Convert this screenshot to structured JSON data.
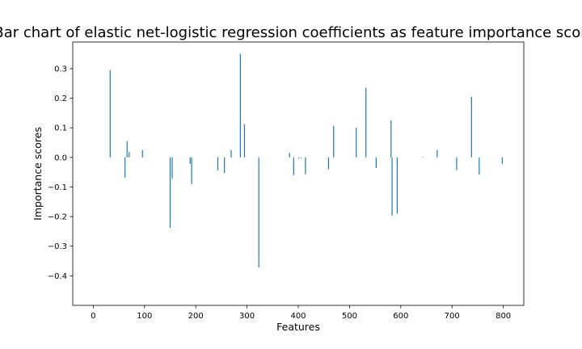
{
  "chart_data": {
    "type": "bar",
    "title": "Bar chart of elastic net-logistic regression coefficients as feature importance scores",
    "xlabel": "Features",
    "ylabel": "Importance scores",
    "xlim": [
      -40,
      840
    ],
    "ylim": [
      -0.5,
      0.39
    ],
    "xticks": [
      0,
      100,
      200,
      300,
      400,
      500,
      600,
      700,
      800
    ],
    "yticks": [
      -0.4,
      -0.3,
      -0.2,
      -0.1,
      0.0,
      0.1,
      0.2,
      0.3
    ],
    "ytick_labels": [
      "−0.4",
      "−0.3",
      "−0.2",
      "−0.1",
      "0.0",
      "0.1",
      "0.2",
      "0.3"
    ],
    "grid": false,
    "legend": false,
    "bar_color": "#1f77b4",
    "bars": [
      {
        "x": 33,
        "value": 0.295
      },
      {
        "x": 62,
        "value": -0.068
      },
      {
        "x": 66,
        "value": 0.055
      },
      {
        "x": 70,
        "value": 0.018
      },
      {
        "x": 96,
        "value": 0.025
      },
      {
        "x": 150,
        "value": -0.238
      },
      {
        "x": 154,
        "value": -0.072
      },
      {
        "x": 189,
        "value": -0.022
      },
      {
        "x": 192,
        "value": -0.09
      },
      {
        "x": 243,
        "value": -0.044
      },
      {
        "x": 256,
        "value": -0.053
      },
      {
        "x": 269,
        "value": 0.025
      },
      {
        "x": 287,
        "value": 0.35
      },
      {
        "x": 295,
        "value": 0.112
      },
      {
        "x": 323,
        "value": -0.372
      },
      {
        "x": 383,
        "value": 0.015
      },
      {
        "x": 391,
        "value": -0.06
      },
      {
        "x": 401,
        "value": -0.003
      },
      {
        "x": 405,
        "value": -0.003
      },
      {
        "x": 414,
        "value": -0.057
      },
      {
        "x": 459,
        "value": -0.04
      },
      {
        "x": 469,
        "value": 0.107
      },
      {
        "x": 513,
        "value": 0.1
      },
      {
        "x": 532,
        "value": 0.235
      },
      {
        "x": 552,
        "value": -0.036
      },
      {
        "x": 581,
        "value": 0.125
      },
      {
        "x": 583,
        "value": -0.197
      },
      {
        "x": 593,
        "value": -0.19
      },
      {
        "x": 643,
        "value": 0.002
      },
      {
        "x": 671,
        "value": 0.025
      },
      {
        "x": 709,
        "value": -0.043
      },
      {
        "x": 738,
        "value": 0.205
      },
      {
        "x": 753,
        "value": -0.058
      },
      {
        "x": 798,
        "value": -0.022
      }
    ]
  }
}
